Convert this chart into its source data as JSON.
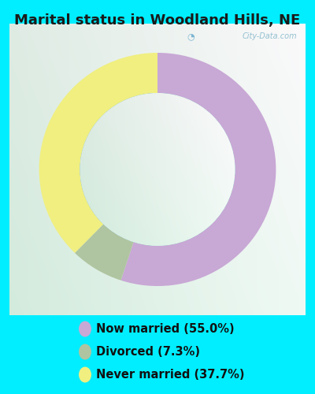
{
  "title": "Marital status in Woodland Hills, NE",
  "background_color": "#00EEFF",
  "chart_bg_color": "#d8ede4",
  "slices": [
    55.0,
    7.3,
    37.7
  ],
  "labels": [
    "Now married (55.0%)",
    "Divorced (7.3%)",
    "Never married (37.7%)"
  ],
  "colors": [
    "#c8a8d5",
    "#afc4a0",
    "#f0ef80"
  ],
  "title_fontsize": 13,
  "title_color": "#1a1a1a",
  "legend_fontsize": 10.5,
  "legend_text_color": "#111111",
  "watermark": "City-Data.com",
  "donut_width": 0.35,
  "start_angle": 90
}
